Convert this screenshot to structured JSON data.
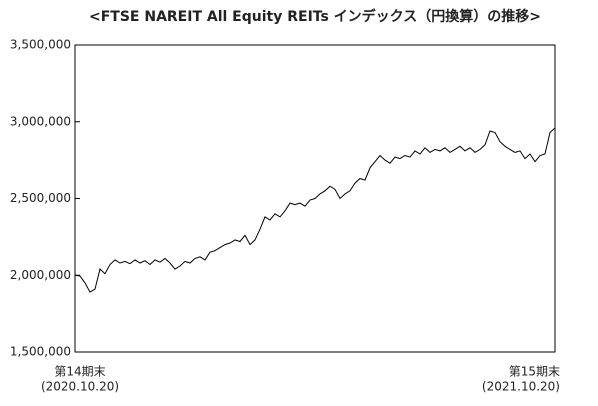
{
  "chart_data": {
    "type": "line",
    "title": "<FTSE NAREIT All Equity REITs インデックス（円換算）の推移>",
    "categories": [
      "第14期末",
      null,
      null,
      null,
      null,
      null,
      null,
      null,
      null,
      null,
      null,
      null,
      null,
      null,
      null,
      null,
      null,
      null,
      null,
      null,
      null,
      null,
      null,
      null,
      null,
      null,
      null,
      null,
      null,
      null,
      null,
      null,
      null,
      null,
      null,
      null,
      null,
      null,
      null,
      null,
      null,
      null,
      null,
      null,
      null,
      null,
      null,
      null,
      null,
      null,
      null,
      null,
      null,
      null,
      null,
      null,
      null,
      null,
      null,
      null,
      null,
      null,
      null,
      null,
      null,
      null,
      null,
      null,
      null,
      null,
      null,
      null,
      null,
      null,
      null,
      null,
      null,
      null,
      null,
      null,
      null,
      null,
      null,
      null,
      null,
      null,
      null,
      null,
      null,
      null,
      null,
      null,
      null,
      null,
      null,
      null,
      "第15期末"
    ],
    "category_dates": [
      "(2020.10.20)",
      null,
      null,
      null,
      null,
      null,
      null,
      null,
      null,
      null,
      null,
      null,
      null,
      null,
      null,
      null,
      null,
      null,
      null,
      null,
      null,
      null,
      null,
      null,
      null,
      null,
      null,
      null,
      null,
      null,
      null,
      null,
      null,
      null,
      null,
      null,
      null,
      null,
      null,
      null,
      null,
      null,
      null,
      null,
      null,
      null,
      null,
      null,
      null,
      null,
      null,
      null,
      null,
      null,
      null,
      null,
      null,
      null,
      null,
      null,
      null,
      null,
      null,
      null,
      null,
      null,
      null,
      null,
      null,
      null,
      null,
      null,
      null,
      null,
      null,
      null,
      null,
      null,
      null,
      null,
      null,
      null,
      null,
      null,
      null,
      null,
      null,
      null,
      null,
      null,
      null,
      null,
      null,
      null,
      null,
      null,
      "(2021.10.20)"
    ],
    "values": [
      2000000,
      1995000,
      1950000,
      1890000,
      1910000,
      2040000,
      2010000,
      2070000,
      2100000,
      2080000,
      2090000,
      2075000,
      2100000,
      2080000,
      2095000,
      2070000,
      2100000,
      2085000,
      2110000,
      2080000,
      2040000,
      2060000,
      2090000,
      2080000,
      2110000,
      2120000,
      2100000,
      2150000,
      2160000,
      2180000,
      2200000,
      2210000,
      2230000,
      2220000,
      2260000,
      2200000,
      2230000,
      2300000,
      2380000,
      2360000,
      2400000,
      2380000,
      2420000,
      2470000,
      2460000,
      2470000,
      2450000,
      2490000,
      2500000,
      2530000,
      2550000,
      2580000,
      2560000,
      2500000,
      2530000,
      2550000,
      2600000,
      2630000,
      2620000,
      2700000,
      2740000,
      2780000,
      2750000,
      2730000,
      2770000,
      2760000,
      2780000,
      2770000,
      2810000,
      2790000,
      2830000,
      2800000,
      2820000,
      2810000,
      2830000,
      2800000,
      2820000,
      2840000,
      2810000,
      2830000,
      2800000,
      2820000,
      2850000,
      2940000,
      2930000,
      2870000,
      2840000,
      2820000,
      2800000,
      2810000,
      2760000,
      2790000,
      2740000,
      2780000,
      2790000,
      2930000,
      2960000
    ],
    "color": "#000000",
    "ylim": [
      1500000,
      3500000
    ],
    "yticks": [
      {
        "value": 1500000,
        "label": "1,500,000"
      },
      {
        "value": 2000000,
        "label": "2,000,000"
      },
      {
        "value": 2500000,
        "label": "2,500,000"
      },
      {
        "value": 3000000,
        "label": "3,000,000"
      },
      {
        "value": 3500000,
        "label": "3,500,000"
      }
    ],
    "grid": false
  }
}
